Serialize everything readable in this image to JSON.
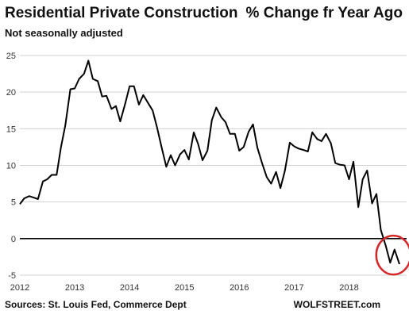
{
  "title_main": "Residential Private Construction",
  "title_right": "% Change fr Year Ago",
  "subtitle": "Not seasonally adjusted",
  "source": "Sources: St. Louis Fed, Commerce Dept",
  "brand": "WOLFSTREET.com",
  "chart_data": {
    "type": "line",
    "title": "Residential Private Construction  % Change fr Year Ago",
    "subtitle": "Not seasonally adjusted",
    "xlabel": "",
    "ylabel": "",
    "ylim": [
      -5,
      25
    ],
    "xlim": [
      2012.0,
      2019.05
    ],
    "y_ticks": [
      25,
      20,
      15,
      10,
      5,
      0,
      -5
    ],
    "x_ticks": [
      2012,
      2013,
      2014,
      2015,
      2016,
      2017,
      2018
    ],
    "x_tick_labels": [
      "2012",
      "2013",
      "2014",
      "2015",
      "2016",
      "2017",
      "2018"
    ],
    "grid": "horizontal",
    "zero_line": true,
    "annotation": "red circle around latest negative readings",
    "line_color": "#000000",
    "highlight_color": "#d62728",
    "series": [
      {
        "x": [
          2012.0,
          2012.08,
          2012.17,
          2012.25,
          2012.33,
          2012.42,
          2012.5,
          2012.58,
          2012.67,
          2012.75,
          2012.83,
          2012.92,
          2013.0,
          2013.08,
          2013.17,
          2013.25,
          2013.33,
          2013.42,
          2013.5,
          2013.58,
          2013.67,
          2013.75,
          2013.83,
          2013.92,
          2014.0,
          2014.08,
          2014.17,
          2014.25,
          2014.33,
          2014.42,
          2014.5,
          2014.58,
          2014.67,
          2014.75,
          2014.83,
          2014.92,
          2015.0,
          2015.08,
          2015.17,
          2015.25,
          2015.33,
          2015.42,
          2015.5,
          2015.58,
          2015.67,
          2015.75,
          2015.83,
          2015.92,
          2016.0,
          2016.08,
          2016.17,
          2016.25,
          2016.33,
          2016.42,
          2016.5,
          2016.58,
          2016.67,
          2016.75,
          2016.83,
          2016.92,
          2017.0,
          2017.08,
          2017.17,
          2017.25,
          2017.33,
          2017.42,
          2017.5,
          2017.58,
          2017.67,
          2017.75,
          2017.83,
          2017.92,
          2018.0,
          2018.08,
          2018.17,
          2018.25,
          2018.33,
          2018.42,
          2018.5,
          2018.58,
          2018.67,
          2018.75,
          2018.83,
          2018.92
        ],
        "y": [
          4.7,
          5.5,
          5.8,
          5.6,
          5.4,
          7.8,
          8.1,
          8.7,
          8.7,
          12.5,
          15.5,
          20.4,
          20.5,
          21.8,
          22.5,
          24.3,
          21.8,
          21.5,
          19.4,
          19.5,
          17.7,
          18.1,
          16.0,
          18.4,
          20.8,
          20.8,
          18.3,
          19.6,
          18.6,
          17.5,
          15.2,
          12.6,
          9.8,
          11.4,
          10.0,
          11.5,
          12.1,
          10.8,
          14.5,
          12.9,
          10.7,
          12.0,
          16.2,
          17.9,
          16.6,
          15.9,
          14.3,
          14.3,
          12.0,
          12.5,
          14.6,
          15.6,
          12.4,
          10.2,
          8.4,
          7.5,
          9.1,
          6.9,
          9.2,
          13.1,
          12.6,
          12.3,
          12.1,
          11.9,
          14.5,
          13.6,
          13.3,
          14.3,
          13.0,
          10.3,
          10.1,
          10.0,
          8.1,
          10.5,
          4.3,
          8.1,
          9.3,
          4.8,
          6.1,
          1.2,
          -1.0,
          -3.3,
          -1.5,
          -3.5
        ]
      }
    ]
  }
}
